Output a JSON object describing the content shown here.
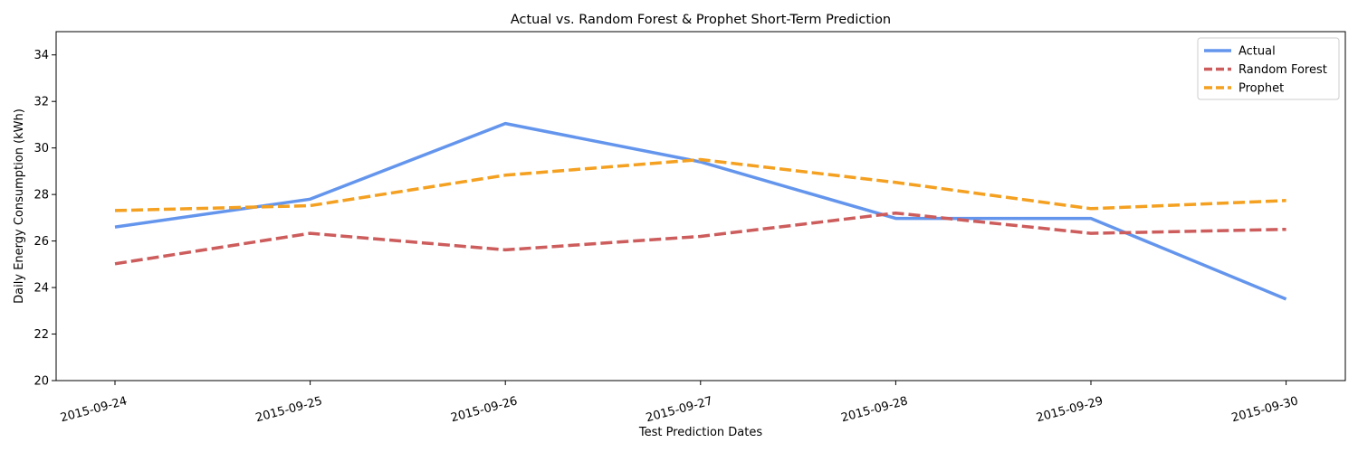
{
  "chart_data": {
    "type": "line",
    "title": "Actual vs. Random Forest & Prophet Short-Term Prediction",
    "xlabel": "Test Prediction Dates",
    "ylabel": "Daily Energy Consumption (kWh)",
    "categories": [
      "2015-09-24",
      "2015-09-25",
      "2015-09-26",
      "2015-09-27",
      "2015-09-28",
      "2015-09-29",
      "2015-09-30"
    ],
    "ylim": [
      20,
      35
    ],
    "yticks": [
      20,
      22,
      24,
      26,
      28,
      30,
      32,
      34
    ],
    "grid": false,
    "legend_position": "top-right",
    "series": [
      {
        "name": "Actual",
        "color": "#6495ED",
        "style": "solid",
        "values": [
          26.6,
          27.8,
          31.05,
          29.4,
          26.97,
          26.97,
          23.5
        ]
      },
      {
        "name": "Random Forest",
        "color": "#CD5C5C",
        "style": "dashed",
        "values": [
          25.02,
          26.33,
          25.62,
          26.2,
          27.2,
          26.33,
          26.5
        ]
      },
      {
        "name": "Prophet",
        "color": "#F4A020",
        "style": "dashed",
        "values": [
          27.31,
          27.52,
          28.83,
          29.5,
          28.52,
          27.39,
          27.74
        ]
      }
    ]
  }
}
